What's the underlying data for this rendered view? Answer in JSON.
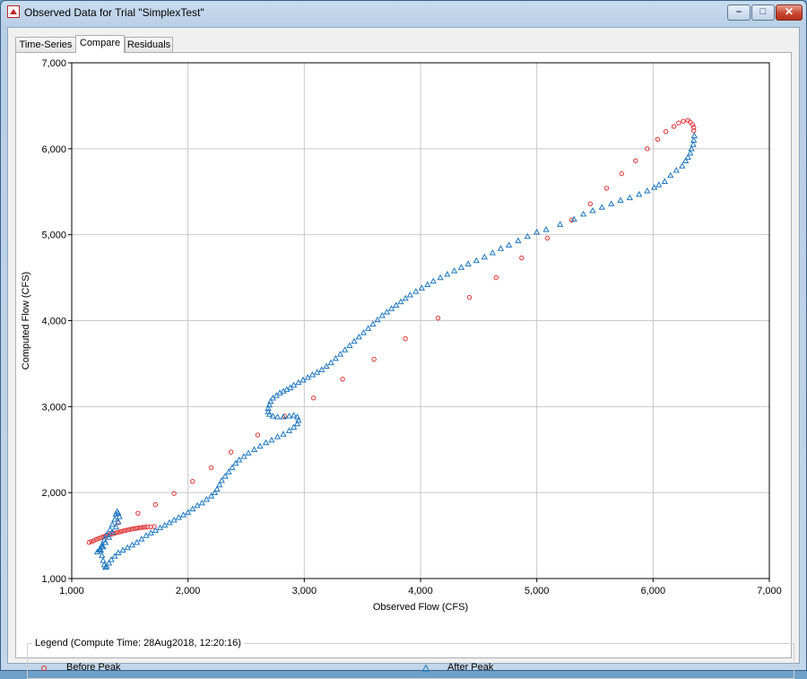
{
  "window": {
    "title": "Observed Data for Trial \"SimplexTest\"",
    "minimize_glyph": "–",
    "maximize_glyph": "□",
    "close_glyph": "✕"
  },
  "tabs": [
    {
      "label": "Time-Series",
      "active": false
    },
    {
      "label": "Compare",
      "active": true
    },
    {
      "label": "Residuals",
      "active": false
    }
  ],
  "legend": {
    "caption": "Legend (Compute Time: 28Aug2018, 12:20:16)",
    "items": [
      {
        "label": "Before Peak",
        "marker": "circle",
        "color": "#e03030"
      },
      {
        "label": "After Peak",
        "marker": "triangle",
        "color": "#1f77c0"
      }
    ]
  },
  "chart_data": {
    "type": "scatter",
    "xlabel": "Observed Flow (CFS)",
    "ylabel": "Computed Flow (CFS)",
    "xlim": [
      1000,
      7000
    ],
    "ylim": [
      1000,
      7000
    ],
    "xticks": [
      "1,000",
      "2,000",
      "3,000",
      "4,000",
      "5,000",
      "6,000",
      "7,000"
    ],
    "yticks": [
      "1,000",
      "2,000",
      "3,000",
      "4,000",
      "5,000",
      "6,000",
      "7,000"
    ],
    "grid": true,
    "series": [
      {
        "name": "Before Peak",
        "marker": "circle",
        "color": "#e03030",
        "points": [
          [
            1150,
            1420
          ],
          [
            1170,
            1430
          ],
          [
            1190,
            1440
          ],
          [
            1210,
            1455
          ],
          [
            1230,
            1465
          ],
          [
            1250,
            1475
          ],
          [
            1270,
            1485
          ],
          [
            1290,
            1495
          ],
          [
            1310,
            1505
          ],
          [
            1330,
            1512
          ],
          [
            1350,
            1520
          ],
          [
            1370,
            1528
          ],
          [
            1390,
            1535
          ],
          [
            1410,
            1542
          ],
          [
            1430,
            1550
          ],
          [
            1450,
            1556
          ],
          [
            1470,
            1562
          ],
          [
            1490,
            1568
          ],
          [
            1510,
            1574
          ],
          [
            1530,
            1580
          ],
          [
            1550,
            1584
          ],
          [
            1570,
            1588
          ],
          [
            1590,
            1592
          ],
          [
            1610,
            1595
          ],
          [
            1630,
            1598
          ],
          [
            1650,
            1600
          ],
          [
            1680,
            1602
          ],
          [
            1710,
            1604
          ],
          [
            1400,
            1650
          ],
          [
            1570,
            1760
          ],
          [
            1720,
            1860
          ],
          [
            1880,
            1990
          ],
          [
            2040,
            2130
          ],
          [
            2200,
            2290
          ],
          [
            2370,
            2470
          ],
          [
            2600,
            2670
          ],
          [
            2830,
            2890
          ],
          [
            3080,
            3100
          ],
          [
            3330,
            3320
          ],
          [
            3600,
            3550
          ],
          [
            3870,
            3790
          ],
          [
            4150,
            4030
          ],
          [
            4420,
            4270
          ],
          [
            4650,
            4500
          ],
          [
            4870,
            4730
          ],
          [
            5090,
            4960
          ],
          [
            5300,
            5170
          ],
          [
            5460,
            5360
          ],
          [
            5600,
            5540
          ],
          [
            5730,
            5710
          ],
          [
            5850,
            5860
          ],
          [
            5950,
            6000
          ],
          [
            6040,
            6110
          ],
          [
            6110,
            6200
          ],
          [
            6180,
            6260
          ],
          [
            6220,
            6300
          ],
          [
            6260,
            6320
          ],
          [
            6300,
            6330
          ],
          [
            6320,
            6310
          ],
          [
            6340,
            6280
          ],
          [
            6350,
            6250
          ],
          [
            6350,
            6210
          ]
        ]
      },
      {
        "name": "After Peak",
        "marker": "triangle",
        "color": "#1f77c0",
        "points": [
          [
            6355,
            6150
          ],
          [
            6350,
            6100
          ],
          [
            6345,
            6050
          ],
          [
            6330,
            6000
          ],
          [
            6320,
            5950
          ],
          [
            6300,
            5900
          ],
          [
            6280,
            5860
          ],
          [
            6250,
            5800
          ],
          [
            6200,
            5750
          ],
          [
            6150,
            5690
          ],
          [
            6100,
            5620
          ],
          [
            6050,
            5580
          ],
          [
            6010,
            5550
          ],
          [
            5950,
            5510
          ],
          [
            5880,
            5470
          ],
          [
            5800,
            5430
          ],
          [
            5720,
            5400
          ],
          [
            5640,
            5360
          ],
          [
            5560,
            5320
          ],
          [
            5480,
            5280
          ],
          [
            5400,
            5240
          ],
          [
            5320,
            5180
          ],
          [
            5200,
            5120
          ],
          [
            5080,
            5060
          ],
          [
            5000,
            5030
          ],
          [
            4920,
            4980
          ],
          [
            4840,
            4930
          ],
          [
            4760,
            4880
          ],
          [
            4690,
            4840
          ],
          [
            4620,
            4790
          ],
          [
            4550,
            4740
          ],
          [
            4480,
            4700
          ],
          [
            4410,
            4660
          ],
          [
            4350,
            4620
          ],
          [
            4290,
            4580
          ],
          [
            4230,
            4540
          ],
          [
            4170,
            4500
          ],
          [
            4110,
            4460
          ],
          [
            4060,
            4420
          ],
          [
            4010,
            4380
          ],
          [
            3960,
            4340
          ],
          [
            3910,
            4300
          ],
          [
            3870,
            4260
          ],
          [
            3830,
            4220
          ],
          [
            3790,
            4180
          ],
          [
            3750,
            4140
          ],
          [
            3710,
            4100
          ],
          [
            3670,
            4060
          ],
          [
            3630,
            4010
          ],
          [
            3590,
            3960
          ],
          [
            3550,
            3910
          ],
          [
            3510,
            3860
          ],
          [
            3470,
            3810
          ],
          [
            3430,
            3760
          ],
          [
            3390,
            3710
          ],
          [
            3350,
            3660
          ],
          [
            3310,
            3610
          ],
          [
            3270,
            3560
          ],
          [
            3230,
            3510
          ],
          [
            3190,
            3470
          ],
          [
            3150,
            3430
          ],
          [
            3110,
            3400
          ],
          [
            3070,
            3370
          ],
          [
            3030,
            3340
          ],
          [
            2990,
            3310
          ],
          [
            2950,
            3280
          ],
          [
            2910,
            3250
          ],
          [
            2880,
            3220
          ],
          [
            2850,
            3200
          ],
          [
            2820,
            3180
          ],
          [
            2790,
            3160
          ],
          [
            2760,
            3130
          ],
          [
            2730,
            3100
          ],
          [
            2710,
            3060
          ],
          [
            2700,
            3020
          ],
          [
            2690,
            2980
          ],
          [
            2690,
            2940
          ],
          [
            2700,
            2910
          ],
          [
            2730,
            2890
          ],
          [
            2770,
            2880
          ],
          [
            2820,
            2880
          ],
          [
            2870,
            2890
          ],
          [
            2910,
            2900
          ],
          [
            2940,
            2880
          ],
          [
            2950,
            2840
          ],
          [
            2940,
            2800
          ],
          [
            2910,
            2760
          ],
          [
            2870,
            2720
          ],
          [
            2820,
            2680
          ],
          [
            2770,
            2650
          ],
          [
            2720,
            2610
          ],
          [
            2670,
            2580
          ],
          [
            2620,
            2540
          ],
          [
            2570,
            2500
          ],
          [
            2520,
            2460
          ],
          [
            2480,
            2420
          ],
          [
            2440,
            2380
          ],
          [
            2410,
            2340
          ],
          [
            2380,
            2290
          ],
          [
            2350,
            2240
          ],
          [
            2320,
            2190
          ],
          [
            2290,
            2140
          ],
          [
            2270,
            2090
          ],
          [
            2250,
            2040
          ],
          [
            2230,
            2000
          ],
          [
            2200,
            1960
          ],
          [
            2160,
            1920
          ],
          [
            2120,
            1880
          ],
          [
            2080,
            1850
          ],
          [
            2040,
            1810
          ],
          [
            2000,
            1770
          ],
          [
            1960,
            1740
          ],
          [
            1920,
            1710
          ],
          [
            1880,
            1680
          ],
          [
            1840,
            1650
          ],
          [
            1800,
            1620
          ],
          [
            1760,
            1590
          ],
          [
            1720,
            1560
          ],
          [
            1680,
            1530
          ],
          [
            1640,
            1500
          ],
          [
            1600,
            1460
          ],
          [
            1560,
            1420
          ],
          [
            1520,
            1390
          ],
          [
            1480,
            1360
          ],
          [
            1440,
            1330
          ],
          [
            1400,
            1300
          ],
          [
            1370,
            1260
          ],
          [
            1340,
            1220
          ],
          [
            1320,
            1180
          ],
          [
            1300,
            1140
          ],
          [
            1290,
            1130
          ],
          [
            1280,
            1160
          ],
          [
            1270,
            1210
          ],
          [
            1260,
            1270
          ],
          [
            1250,
            1330
          ],
          [
            1260,
            1390
          ],
          [
            1280,
            1450
          ],
          [
            1300,
            1510
          ],
          [
            1330,
            1570
          ],
          [
            1350,
            1630
          ],
          [
            1370,
            1690
          ],
          [
            1380,
            1750
          ],
          [
            1390,
            1780
          ],
          [
            1400,
            1760
          ],
          [
            1410,
            1720
          ],
          [
            1400,
            1660
          ],
          [
            1380,
            1600
          ],
          [
            1350,
            1540
          ],
          [
            1320,
            1480
          ],
          [
            1290,
            1420
          ],
          [
            1260,
            1370
          ],
          [
            1240,
            1340
          ],
          [
            1220,
            1310
          ],
          [
            1240,
            1330
          ],
          [
            1270,
            1370
          ]
        ]
      }
    ]
  }
}
